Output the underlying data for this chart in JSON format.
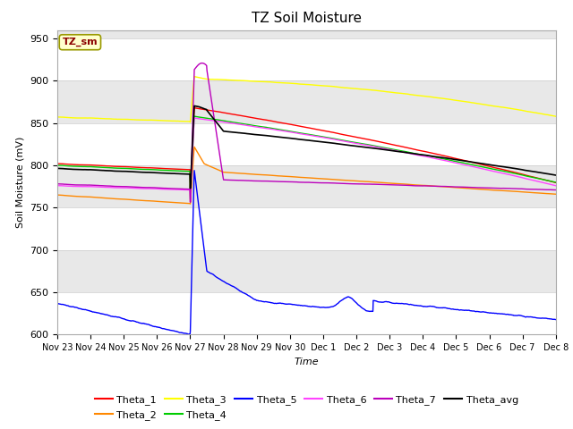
{
  "title": "TZ Soil Moisture",
  "xlabel": "Time",
  "ylabel": "Soil Moisture (mV)",
  "ylim": [
    600,
    960
  ],
  "yticks": [
    600,
    650,
    700,
    750,
    800,
    850,
    900,
    950
  ],
  "legend_label": "TZ_sm",
  "series_colors": {
    "Theta_1": "#ff0000",
    "Theta_2": "#ff8800",
    "Theta_3": "#ffff00",
    "Theta_4": "#00cc00",
    "Theta_5": "#0000ff",
    "Theta_6": "#ff44ff",
    "Theta_7": "#bb00bb",
    "Theta_avg": "#000000"
  },
  "x_tick_labels": [
    "Nov 23",
    "Nov 24",
    "Nov 25",
    "Nov 26",
    "Nov 27",
    "Nov 28",
    "Nov 29",
    "Nov 30",
    "Dec 1",
    "Dec 2",
    "Dec 3",
    "Dec 4",
    "Dec 5",
    "Dec 6",
    "Dec 7",
    "Dec 8"
  ],
  "fig_bg": "#ffffff",
  "plot_bg": "#e8e8e8",
  "grid_color": "#ffffff"
}
